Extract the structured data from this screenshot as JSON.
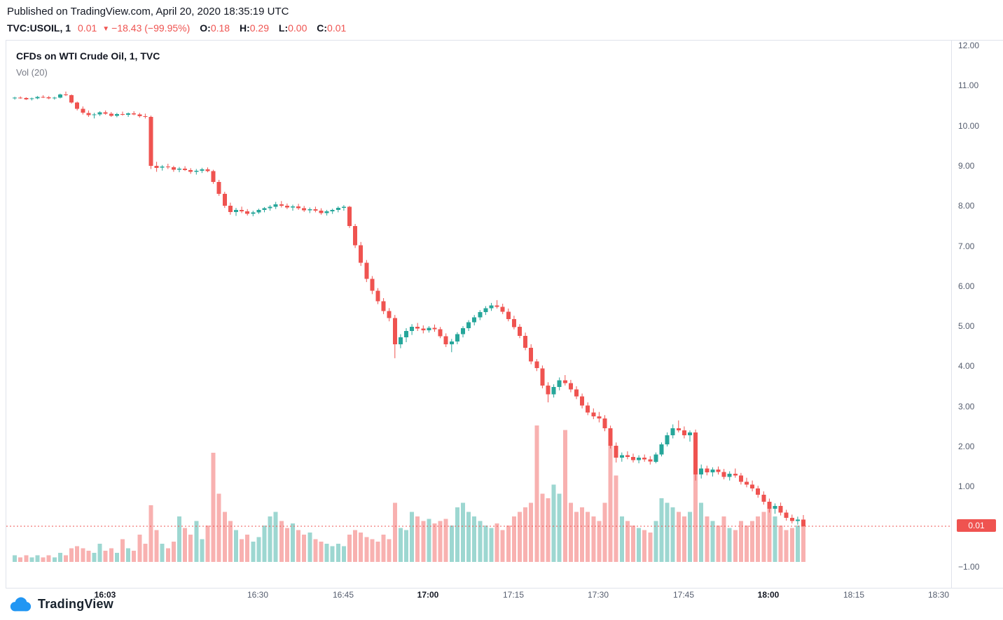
{
  "header": {
    "published": "Published on TradingView.com, April 20, 2020 18:35:19 UTC",
    "symbol": "TVC:USOIL, 1",
    "last_price": "0.01",
    "direction_icon": "▼",
    "change": "−18.43 (−99.95%)",
    "ohlc": [
      {
        "k": "O:",
        "v": "0.18"
      },
      {
        "k": "H:",
        "v": "0.29"
      },
      {
        "k": "L:",
        "v": "0.00"
      },
      {
        "k": "C:",
        "v": "0.01"
      }
    ]
  },
  "pane": {
    "title": "CFDs on WTI Crude Oil, 1, TVC",
    "indicator": "Vol (20)"
  },
  "footer": {
    "logo_text": "TradingView"
  },
  "colors": {
    "up": "#26a69a",
    "down": "#ef5350",
    "volume_up": "rgba(38,166,154,0.45)",
    "volume_down": "rgba(239,83,80,0.45)",
    "price_line": "#ef5350",
    "badge_bg": "#ef5350",
    "badge_text": "#ffffff"
  },
  "chart_data": {
    "type": "candlestick",
    "title": "CFDs on WTI Crude Oil, 1, TVC",
    "symbol": "TVC:USOIL",
    "interval": "1 minute",
    "legend": [
      "Vol (20)"
    ],
    "y_axis": {
      "ticks": [
        12,
        11,
        10,
        9,
        8,
        7,
        6,
        5,
        4,
        3,
        2,
        1,
        -1
      ],
      "range_hint": [
        -1.6,
        12.1
      ],
      "last_price": 0.01,
      "last_price_label": "0.01"
    },
    "x_axis": {
      "domain_start_time": "15:46",
      "labels": [
        {
          "label": "16:03",
          "minute": 17,
          "bold": true
        },
        {
          "label": "16:30",
          "minute": 44,
          "bold": false
        },
        {
          "label": "16:45",
          "minute": 59,
          "bold": false
        },
        {
          "label": "17:00",
          "minute": 74,
          "bold": true
        },
        {
          "label": "17:15",
          "minute": 89,
          "bold": false
        },
        {
          "label": "17:30",
          "minute": 104,
          "bold": false
        },
        {
          "label": "17:45",
          "minute": 119,
          "bold": false
        },
        {
          "label": "18:00",
          "minute": 134,
          "bold": true
        },
        {
          "label": "18:15",
          "minute": 149,
          "bold": false
        },
        {
          "label": "18:30",
          "minute": 164,
          "bold": false
        }
      ]
    },
    "candle_format": [
      "open",
      "high",
      "low",
      "close",
      "volume_relative"
    ],
    "first_candle_minute": 1,
    "last_candle_ohlc": {
      "o": 0.18,
      "h": 0.29,
      "l": 0.0,
      "c": 0.01
    },
    "candles": [
      [
        10.68,
        10.72,
        10.65,
        10.7,
        3
      ],
      [
        10.7,
        10.73,
        10.67,
        10.69,
        2
      ],
      [
        10.69,
        10.71,
        10.64,
        10.66,
        3
      ],
      [
        10.66,
        10.7,
        10.63,
        10.68,
        2
      ],
      [
        10.68,
        10.74,
        10.66,
        10.72,
        3
      ],
      [
        10.72,
        10.76,
        10.69,
        10.71,
        2
      ],
      [
        10.71,
        10.74,
        10.66,
        10.68,
        3
      ],
      [
        10.68,
        10.72,
        10.65,
        10.7,
        2
      ],
      [
        10.7,
        10.8,
        10.68,
        10.78,
        4
      ],
      [
        10.78,
        10.85,
        10.74,
        10.76,
        3
      ],
      [
        10.76,
        10.78,
        10.55,
        10.58,
        6
      ],
      [
        10.58,
        10.6,
        10.38,
        10.42,
        7
      ],
      [
        10.42,
        10.48,
        10.28,
        10.32,
        6
      ],
      [
        10.32,
        10.38,
        10.22,
        10.26,
        5
      ],
      [
        10.26,
        10.32,
        10.18,
        10.28,
        4
      ],
      [
        10.28,
        10.36,
        10.24,
        10.33,
        8
      ],
      [
        10.33,
        10.38,
        10.27,
        10.3,
        5
      ],
      [
        10.3,
        10.34,
        10.22,
        10.25,
        6
      ],
      [
        10.25,
        10.32,
        10.21,
        10.29,
        4
      ],
      [
        10.29,
        10.35,
        10.25,
        10.27,
        10
      ],
      [
        10.27,
        10.33,
        10.22,
        10.31,
        6
      ],
      [
        10.31,
        10.36,
        10.26,
        10.28,
        5
      ],
      [
        10.28,
        10.32,
        10.2,
        10.24,
        12
      ],
      [
        10.24,
        10.3,
        10.18,
        10.22,
        8
      ],
      [
        10.22,
        10.25,
        8.92,
        9.0,
        25
      ],
      [
        9.0,
        9.1,
        8.85,
        8.95,
        14
      ],
      [
        8.95,
        9.02,
        8.88,
        8.98,
        8
      ],
      [
        8.98,
        9.05,
        8.92,
        8.96,
        6
      ],
      [
        8.96,
        9.0,
        8.85,
        8.9,
        9
      ],
      [
        8.9,
        8.97,
        8.84,
        8.93,
        20
      ],
      [
        8.93,
        8.99,
        8.87,
        8.89,
        15
      ],
      [
        8.89,
        8.94,
        8.8,
        8.85,
        12
      ],
      [
        8.85,
        8.92,
        8.78,
        8.88,
        18
      ],
      [
        8.88,
        8.95,
        8.82,
        8.91,
        10
      ],
      [
        8.91,
        8.96,
        8.84,
        8.87,
        16
      ],
      [
        8.87,
        8.9,
        8.55,
        8.6,
        48
      ],
      [
        8.6,
        8.65,
        8.25,
        8.3,
        30
      ],
      [
        8.3,
        8.35,
        7.95,
        8.0,
        22
      ],
      [
        8.0,
        8.08,
        7.78,
        7.85,
        18
      ],
      [
        7.85,
        7.95,
        7.75,
        7.9,
        14
      ],
      [
        7.9,
        7.98,
        7.82,
        7.86,
        10
      ],
      [
        7.86,
        7.92,
        7.76,
        7.8,
        12
      ],
      [
        7.8,
        7.88,
        7.74,
        7.84,
        9
      ],
      [
        7.84,
        7.93,
        7.8,
        7.9,
        11
      ],
      [
        7.9,
        7.97,
        7.84,
        7.94,
        16
      ],
      [
        7.94,
        8.02,
        7.88,
        7.98,
        20
      ],
      [
        7.98,
        8.1,
        7.92,
        8.04,
        22
      ],
      [
        8.04,
        8.12,
        7.96,
        8.0,
        18
      ],
      [
        8.0,
        8.06,
        7.92,
        7.96,
        15
      ],
      [
        7.96,
        8.03,
        7.88,
        7.99,
        17
      ],
      [
        7.99,
        8.05,
        7.9,
        7.94,
        14
      ],
      [
        7.94,
        8.0,
        7.85,
        7.89,
        12
      ],
      [
        7.89,
        7.96,
        7.82,
        7.92,
        13
      ],
      [
        7.92,
        7.98,
        7.84,
        7.88,
        10
      ],
      [
        7.88,
        7.94,
        7.78,
        7.82,
        9
      ],
      [
        7.82,
        7.9,
        7.76,
        7.86,
        8
      ],
      [
        7.86,
        7.93,
        7.8,
        7.9,
        7
      ],
      [
        7.9,
        7.99,
        7.84,
        7.95,
        8
      ],
      [
        7.95,
        8.02,
        7.88,
        7.98,
        7
      ],
      [
        7.98,
        8.0,
        7.45,
        7.5,
        12
      ],
      [
        7.5,
        7.55,
        6.95,
        7.02,
        14
      ],
      [
        7.02,
        7.1,
        6.5,
        6.58,
        13
      ],
      [
        6.58,
        6.65,
        6.1,
        6.18,
        11
      ],
      [
        6.18,
        6.25,
        5.8,
        5.88,
        10
      ],
      [
        5.88,
        5.95,
        5.55,
        5.62,
        9
      ],
      [
        5.62,
        5.7,
        5.3,
        5.38,
        12
      ],
      [
        5.38,
        5.45,
        5.12,
        5.2,
        10
      ],
      [
        5.2,
        5.28,
        4.2,
        4.55,
        26
      ],
      [
        4.55,
        4.8,
        4.45,
        4.72,
        15
      ],
      [
        4.72,
        4.95,
        4.6,
        4.88,
        14
      ],
      [
        4.88,
        5.05,
        4.78,
        4.98,
        22
      ],
      [
        4.98,
        5.08,
        4.88,
        4.94,
        20
      ],
      [
        4.94,
        5.02,
        4.82,
        4.9,
        18
      ],
      [
        4.9,
        5.0,
        4.84,
        4.96,
        19
      ],
      [
        4.96,
        5.04,
        4.86,
        4.92,
        17
      ],
      [
        4.92,
        4.98,
        4.7,
        4.75,
        18
      ],
      [
        4.75,
        4.82,
        4.48,
        4.55,
        19
      ],
      [
        4.55,
        4.68,
        4.35,
        4.62,
        16
      ],
      [
        4.62,
        4.85,
        4.55,
        4.8,
        24
      ],
      [
        4.8,
        5.0,
        4.72,
        4.95,
        26
      ],
      [
        4.95,
        5.15,
        4.88,
        5.1,
        22
      ],
      [
        5.1,
        5.28,
        5.02,
        5.22,
        20
      ],
      [
        5.22,
        5.4,
        5.15,
        5.35,
        18
      ],
      [
        5.35,
        5.5,
        5.28,
        5.45,
        16
      ],
      [
        5.45,
        5.58,
        5.38,
        5.52,
        15
      ],
      [
        5.52,
        5.65,
        5.44,
        5.48,
        17
      ],
      [
        5.48,
        5.56,
        5.3,
        5.36,
        14
      ],
      [
        5.36,
        5.44,
        5.12,
        5.18,
        16
      ],
      [
        5.18,
        5.26,
        4.92,
        4.98,
        20
      ],
      [
        4.98,
        5.05,
        4.7,
        4.76,
        22
      ],
      [
        4.76,
        4.84,
        4.4,
        4.46,
        24
      ],
      [
        4.46,
        4.55,
        4.05,
        4.12,
        26
      ],
      [
        4.12,
        4.18,
        3.88,
        3.95,
        60
      ],
      [
        3.95,
        4.02,
        3.45,
        3.52,
        30
      ],
      [
        3.52,
        3.6,
        3.1,
        3.3,
        28
      ],
      [
        3.3,
        3.55,
        3.22,
        3.48,
        34
      ],
      [
        3.48,
        3.72,
        3.4,
        3.65,
        30
      ],
      [
        3.65,
        3.78,
        3.52,
        3.58,
        58
      ],
      [
        3.58,
        3.66,
        3.35,
        3.42,
        26
      ],
      [
        3.42,
        3.5,
        3.18,
        3.25,
        22
      ],
      [
        3.25,
        3.32,
        2.95,
        3.02,
        24
      ],
      [
        3.02,
        3.1,
        2.78,
        2.85,
        22
      ],
      [
        2.85,
        2.95,
        2.68,
        2.75,
        20
      ],
      [
        2.75,
        2.86,
        2.6,
        2.7,
        18
      ],
      [
        2.7,
        2.78,
        2.38,
        2.45,
        26
      ],
      [
        2.45,
        2.52,
        1.95,
        2.02,
        55
      ],
      [
        2.02,
        2.1,
        1.6,
        1.72,
        38
      ],
      [
        1.72,
        1.85,
        1.62,
        1.78,
        20
      ],
      [
        1.78,
        1.88,
        1.68,
        1.74,
        18
      ],
      [
        1.74,
        1.82,
        1.6,
        1.66,
        16
      ],
      [
        1.66,
        1.78,
        1.58,
        1.72,
        15
      ],
      [
        1.72,
        1.8,
        1.62,
        1.68,
        14
      ],
      [
        1.68,
        1.76,
        1.55,
        1.62,
        13
      ],
      [
        1.62,
        1.85,
        1.58,
        1.8,
        18
      ],
      [
        1.8,
        2.1,
        1.75,
        2.05,
        28
      ],
      [
        2.05,
        2.35,
        2.0,
        2.28,
        26
      ],
      [
        2.28,
        2.55,
        2.2,
        2.45,
        24
      ],
      [
        2.45,
        2.65,
        2.35,
        2.4,
        22
      ],
      [
        2.4,
        2.5,
        2.2,
        2.28,
        20
      ],
      [
        2.28,
        2.4,
        2.12,
        2.35,
        22
      ],
      [
        2.35,
        2.42,
        1.15,
        1.3,
        48
      ],
      [
        1.3,
        1.55,
        1.2,
        1.45,
        26
      ],
      [
        1.45,
        1.52,
        1.28,
        1.35,
        20
      ],
      [
        1.35,
        1.48,
        1.25,
        1.42,
        18
      ],
      [
        1.42,
        1.5,
        1.3,
        1.36,
        16
      ],
      [
        1.36,
        1.44,
        1.18,
        1.24,
        20
      ],
      [
        1.24,
        1.38,
        1.15,
        1.32,
        15
      ],
      [
        1.32,
        1.45,
        1.22,
        1.28,
        14
      ],
      [
        1.28,
        1.34,
        1.05,
        1.12,
        18
      ],
      [
        1.12,
        1.22,
        0.98,
        1.05,
        16
      ],
      [
        1.05,
        1.15,
        0.88,
        0.95,
        18
      ],
      [
        0.95,
        1.02,
        0.72,
        0.8,
        20
      ],
      [
        0.8,
        0.88,
        0.55,
        0.62,
        22
      ],
      [
        0.62,
        0.7,
        0.35,
        0.45,
        24
      ],
      [
        0.45,
        0.58,
        0.32,
        0.52,
        20
      ],
      [
        0.52,
        0.6,
        0.28,
        0.35,
        16
      ],
      [
        0.35,
        0.42,
        0.15,
        0.22,
        14
      ],
      [
        0.22,
        0.3,
        0.08,
        0.14,
        15
      ],
      [
        0.14,
        0.25,
        0.05,
        0.18,
        16
      ],
      [
        0.18,
        0.29,
        0.0,
        0.01,
        18
      ]
    ]
  }
}
